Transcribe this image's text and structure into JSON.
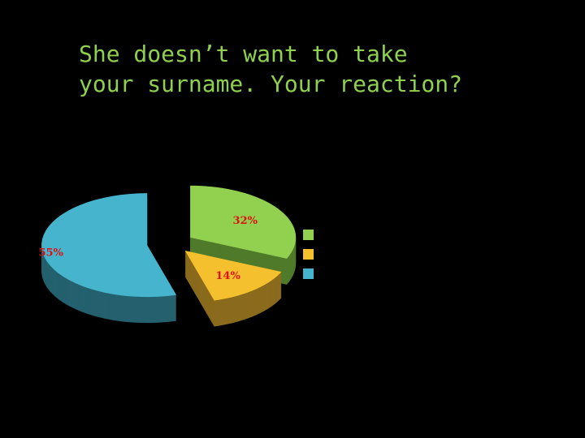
{
  "title_lines": [
    "She doesn’t want to take",
    "your surname. Your reaction?"
  ],
  "chart_data": {
    "type": "pie",
    "style": "3d-exploded",
    "title": "She doesn’t want to take your surname. Your reaction?",
    "slices": [
      {
        "value": 32,
        "label": "32%",
        "color": "#92d050",
        "side_color": "#4f7a2a"
      },
      {
        "value": 14,
        "label": "14%",
        "color": "#f5c02e",
        "side_color": "#8a6a1c"
      },
      {
        "value": 55,
        "label": "55%",
        "color": "#45b4cc",
        "side_color": "#24606e"
      }
    ],
    "legend": {
      "placement": "right",
      "entries": [
        "",
        "",
        ""
      ]
    },
    "label_color": "#e01010"
  }
}
